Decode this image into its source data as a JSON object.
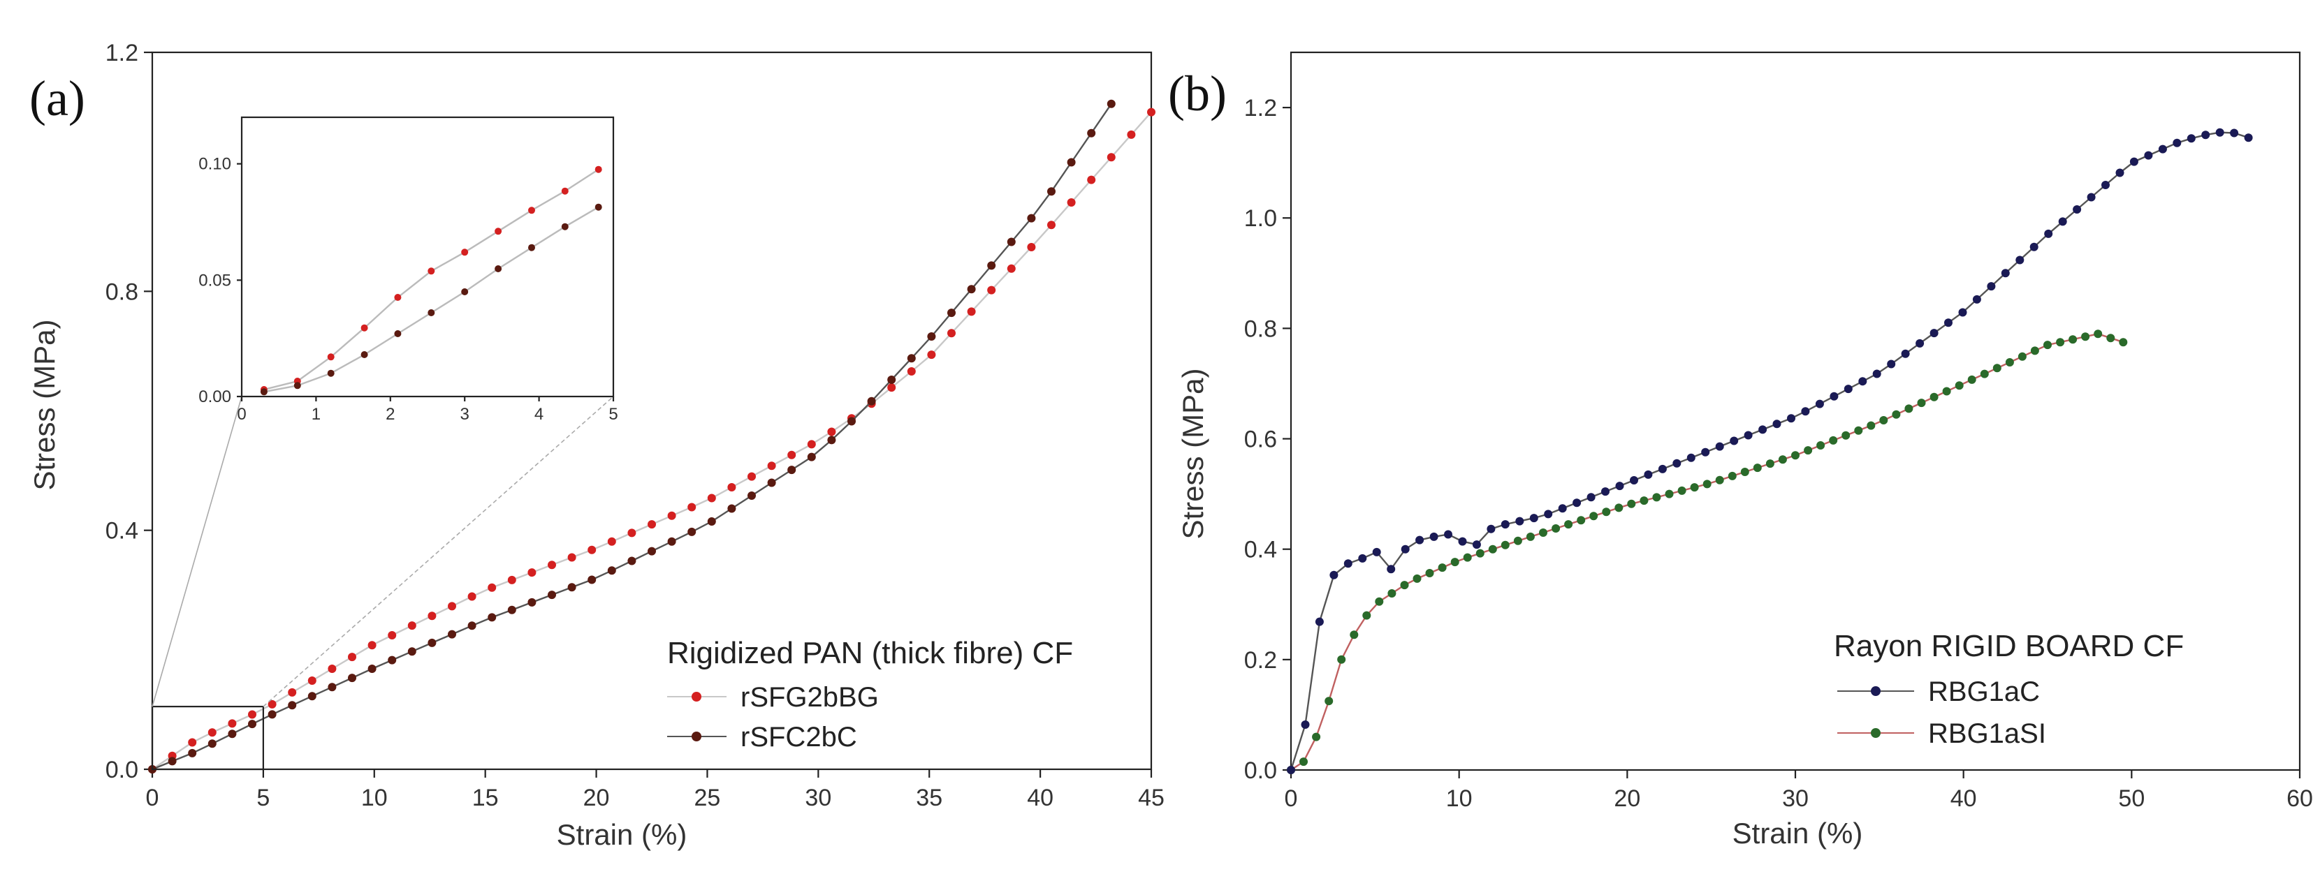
{
  "chart_data": [
    {
      "panel": "(a)",
      "type": "line",
      "xlabel": "Strain (%)",
      "ylabel": "Stress (MPa)",
      "xlim": [
        0,
        45
      ],
      "ylim": [
        0,
        1.2
      ],
      "xticks": [
        "0",
        "5",
        "10",
        "15",
        "20",
        "25",
        "30",
        "35",
        "40",
        "45"
      ],
      "yticks": [
        "0.0",
        "0.4",
        "0.8",
        "1.2"
      ],
      "legend_title": "Rigidized PAN (thick fibre) CF",
      "legend_position": "bottom-right",
      "series": [
        {
          "name": "rSFG2bBG",
          "color": "#d42020",
          "line_color": "#c8c8c8",
          "x": [
            0,
            2,
            5,
            10,
            15,
            20,
            25,
            30,
            32,
            35,
            40,
            45
          ],
          "y": [
            0,
            0.05,
            0.1,
            0.21,
            0.3,
            0.37,
            0.45,
            0.55,
            0.6,
            0.69,
            0.89,
            1.1
          ]
        },
        {
          "name": "rSFC2bC",
          "color": "#5a1a10",
          "line_color": "#555555",
          "x": [
            0,
            2,
            5,
            10,
            15,
            20,
            25,
            30,
            32,
            35,
            40,
            43.5
          ],
          "y": [
            0,
            0.03,
            0.085,
            0.17,
            0.25,
            0.32,
            0.41,
            0.53,
            0.6,
            0.72,
            0.94,
            1.13
          ]
        }
      ],
      "inset": {
        "xlim": [
          0,
          5
        ],
        "ylim": [
          0,
          0.12
        ],
        "xticks": [
          "0",
          "1",
          "2",
          "3",
          "4",
          "5"
        ],
        "yticks": [
          "0.00",
          "0.05",
          "0.10"
        ],
        "series": [
          {
            "name": "rSFG2bBG",
            "x": [
              0.3,
              0.8,
              1.2,
              1.6,
              2.0,
              2.5,
              3.0,
              3.5,
              4.0,
              4.5,
              5.0
            ],
            "y": [
              0.003,
              0.007,
              0.017,
              0.028,
              0.04,
              0.053,
              0.062,
              0.072,
              0.082,
              0.091,
              0.102
            ]
          },
          {
            "name": "rSFC2bC",
            "x": [
              0.3,
              0.8,
              1.2,
              1.6,
              2.0,
              2.5,
              3.0,
              3.5,
              4.0,
              4.5,
              5.0
            ],
            "y": [
              0.002,
              0.005,
              0.01,
              0.017,
              0.025,
              0.035,
              0.045,
              0.056,
              0.066,
              0.076,
              0.085
            ]
          }
        ]
      }
    },
    {
      "panel": "(b)",
      "type": "line",
      "xlabel": "Strain (%)",
      "ylabel": "Stress (MPa)",
      "xlim": [
        0,
        60
      ],
      "ylim": [
        0,
        1.3
      ],
      "xticks": [
        "0",
        "10",
        "20",
        "30",
        "40",
        "50",
        "60"
      ],
      "yticks": [
        "0.0",
        "0.2",
        "0.4",
        "0.6",
        "0.8",
        "1.0",
        "1.2"
      ],
      "legend_title": "Rayon RIGID BOARD CF",
      "legend_position": "bottom-right",
      "series": [
        {
          "name": "RBG1aC",
          "color": "#1a1a55",
          "line_color": "#555555",
          "x": [
            0,
            0.8,
            1.5,
            2.2,
            3,
            4,
            5.5,
            6,
            7,
            8,
            10,
            10.5,
            12,
            15,
            20,
            25,
            30,
            35,
            40,
            45,
            50,
            53,
            55,
            56,
            57.5
          ],
          "y": [
            0,
            0.07,
            0.24,
            0.34,
            0.37,
            0.38,
            0.4,
            0.36,
            0.41,
            0.42,
            0.43,
            0.39,
            0.44,
            0.46,
            0.52,
            0.58,
            0.64,
            0.72,
            0.83,
            0.97,
            1.1,
            1.14,
            1.155,
            1.155,
            1.14
          ]
        },
        {
          "name": "RBG1aSI",
          "color": "#2a6a2a",
          "line_color": "#c06060",
          "x": [
            0,
            1,
            2,
            3,
            4,
            5,
            7,
            10,
            15,
            20,
            25,
            30,
            35,
            40,
            45,
            48,
            49,
            50
          ],
          "y": [
            0,
            0.02,
            0.1,
            0.2,
            0.26,
            0.3,
            0.34,
            0.38,
            0.43,
            0.48,
            0.52,
            0.57,
            0.63,
            0.7,
            0.77,
            0.79,
            0.78,
            0.77
          ]
        }
      ]
    }
  ]
}
